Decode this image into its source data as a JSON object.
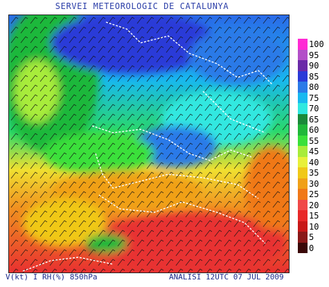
{
  "header": {
    "title": "SERVEI METEOROLOGIC DE CATALUNYA"
  },
  "legend": {
    "items": [
      {
        "label": "100",
        "color": "#ff2ad4"
      },
      {
        "label": "95",
        "color": "#b24fc8"
      },
      {
        "label": "90",
        "color": "#6a2aa8"
      },
      {
        "label": "85",
        "color": "#2a3ad8"
      },
      {
        "label": "80",
        "color": "#2a7ae8"
      },
      {
        "label": "75",
        "color": "#18b8f0"
      },
      {
        "label": "70",
        "color": "#30e8e0"
      },
      {
        "label": "65",
        "color": "#1a8a3a"
      },
      {
        "label": "60",
        "color": "#1fb83a"
      },
      {
        "label": "55",
        "color": "#3ae03a"
      },
      {
        "label": "45",
        "color": "#a8ec3a"
      },
      {
        "label": "40",
        "color": "#e8f03a"
      },
      {
        "label": "35",
        "color": "#f0c818"
      },
      {
        "label": "30",
        "color": "#f0a018"
      },
      {
        "label": "25",
        "color": "#f07818"
      },
      {
        "label": "20",
        "color": "#f04848"
      },
      {
        "label": "15",
        "color": "#e82828"
      },
      {
        "label": "10",
        "color": "#c81818"
      },
      {
        "label": "5",
        "color": "#8a1818"
      },
      {
        "label": "0",
        "color": "#3a0808"
      }
    ]
  },
  "footer": {
    "left": "V(kt) I RH(%) 850hPa",
    "right": "ANALISI 12UTC 07 JUL 2009"
  }
}
